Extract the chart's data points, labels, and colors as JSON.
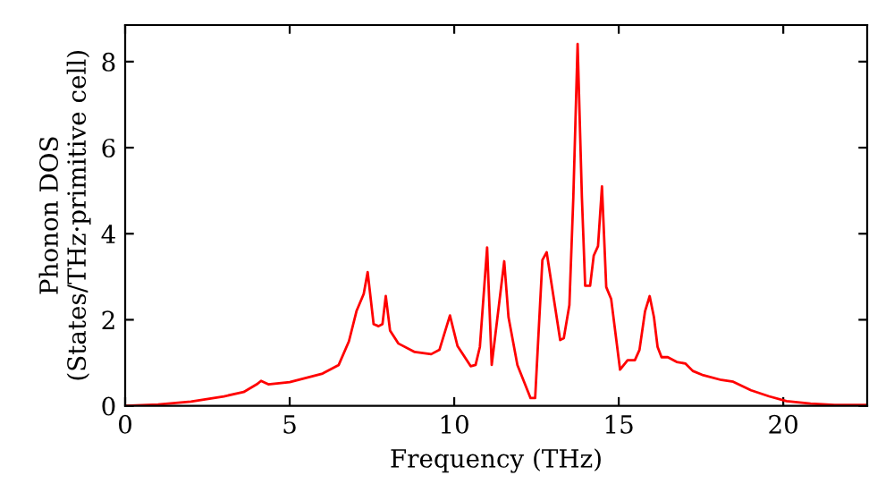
{
  "chart_data": {
    "type": "line",
    "xlabel": "Frequency (THz)",
    "ylabel": "Phonon DOS\n(States/THz·primitive cell)",
    "xlim": [
      0,
      22.55
    ],
    "ylim": [
      0,
      8.85
    ],
    "xticks": [
      0,
      5,
      10,
      15,
      20
    ],
    "yticks": [
      0,
      2,
      4,
      6,
      8
    ],
    "grid": false,
    "marker": "none",
    "line_style": "solid",
    "series": [
      {
        "color": "#ff0000",
        "x": [
          0,
          1,
          2,
          3,
          3.6,
          4.0,
          4.13,
          4.35,
          5,
          6,
          6.49,
          6.8,
          7.03,
          7.25,
          7.37,
          7.55,
          7.7,
          7.82,
          7.92,
          8.05,
          8.3,
          8.8,
          9.3,
          9.55,
          9.87,
          10.1,
          10.5,
          10.65,
          10.78,
          11.0,
          11.14,
          11.52,
          11.65,
          11.92,
          12.32,
          12.46,
          12.68,
          12.81,
          13.22,
          13.33,
          13.5,
          13.62,
          13.75,
          13.88,
          13.98,
          14.13,
          14.24,
          14.37,
          14.49,
          14.62,
          14.77,
          15.04,
          15.27,
          15.49,
          15.63,
          15.8,
          15.94,
          16.07,
          16.18,
          16.3,
          16.49,
          16.76,
          17.03,
          17.25,
          17.57,
          18.12,
          18.48,
          19.02,
          19.57,
          20.1,
          20.83,
          21.56,
          22.55
        ],
        "values": [
          0,
          0.03,
          0.1,
          0.22,
          0.32,
          0.5,
          0.58,
          0.5,
          0.55,
          0.75,
          0.95,
          1.5,
          2.2,
          2.6,
          3.11,
          1.9,
          1.85,
          1.9,
          2.55,
          1.75,
          1.45,
          1.25,
          1.2,
          1.3,
          2.1,
          1.39,
          0.92,
          0.95,
          1.37,
          3.68,
          0.95,
          3.36,
          2.06,
          0.95,
          0.18,
          0.18,
          3.39,
          3.57,
          1.53,
          1.57,
          2.34,
          4.85,
          8.41,
          4.85,
          2.79,
          2.79,
          3.49,
          3.71,
          5.1,
          2.76,
          2.48,
          0.84,
          1.06,
          1.06,
          1.3,
          2.2,
          2.55,
          2.06,
          1.37,
          1.13,
          1.13,
          1.02,
          0.98,
          0.81,
          0.71,
          0.6,
          0.56,
          0.36,
          0.22,
          0.11,
          0.05,
          0.02,
          0.02
        ]
      }
    ]
  }
}
